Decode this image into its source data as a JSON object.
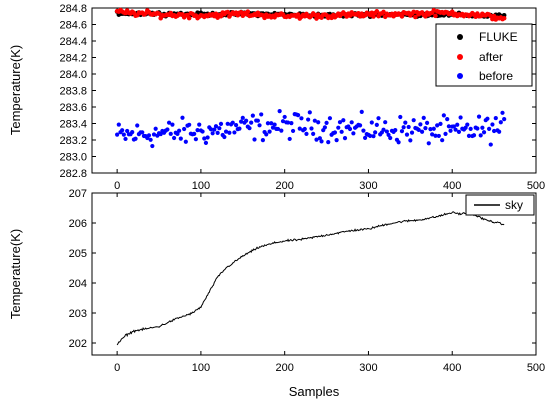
{
  "chart_data": [
    {
      "type": "scatter",
      "xlabel": "",
      "ylabel": "Temperature(K)",
      "xlim": [
        -30,
        500
      ],
      "ylim": [
        282.8,
        284.8
      ],
      "x_ticks": [
        "0",
        "100",
        "200",
        "300",
        "400",
        "500"
      ],
      "y_ticks": [
        "282.8",
        "283.0",
        "283.2",
        "283.4",
        "283.6",
        "283.8",
        "284.0",
        "284.2",
        "284.4",
        "284.6",
        "284.8"
      ],
      "legend_position": "top-right",
      "series": [
        {
          "name": "FLUKE",
          "color": "#000000",
          "n_points": 463,
          "mean": 284.72,
          "spread": 0.03,
          "x": [
            0,
            50,
            100,
            150,
            200,
            250,
            300,
            350,
            400,
            462
          ],
          "y": [
            284.74,
            284.73,
            284.72,
            284.73,
            284.72,
            284.71,
            284.72,
            284.72,
            284.72,
            284.7
          ]
        },
        {
          "name": "after",
          "color": "#ff0000",
          "n_points": 463,
          "mean": 284.72,
          "spread": 0.05,
          "x": [
            0,
            50,
            100,
            150,
            200,
            250,
            300,
            350,
            400,
            462
          ],
          "y": [
            284.75,
            284.72,
            284.71,
            284.73,
            284.7,
            284.71,
            284.72,
            284.73,
            284.74,
            284.68
          ]
        },
        {
          "name": "before",
          "color": "#0000ff",
          "n_points": 463,
          "mean": 283.32,
          "spread": 0.15,
          "x": [
            0,
            50,
            100,
            150,
            200,
            250,
            300,
            350,
            400,
            462
          ],
          "y": [
            283.25,
            283.28,
            283.3,
            283.35,
            283.38,
            283.36,
            283.32,
            283.33,
            283.3,
            283.35
          ]
        }
      ]
    },
    {
      "type": "line",
      "xlabel": "Samples",
      "ylabel": "Temperature(K)",
      "xlim": [
        -30,
        500
      ],
      "ylim": [
        201.6,
        207
      ],
      "x_ticks": [
        "0",
        "100",
        "200",
        "300",
        "400",
        "500"
      ],
      "y_ticks": [
        "202",
        "203",
        "204",
        "205",
        "206",
        "207"
      ],
      "legend_position": "top-right",
      "series": [
        {
          "name": "sky",
          "color": "#000000",
          "x": [
            0,
            10,
            20,
            30,
            50,
            70,
            90,
            100,
            110,
            120,
            130,
            150,
            170,
            190,
            200,
            220,
            240,
            260,
            280,
            300,
            320,
            340,
            360,
            380,
            400,
            410,
            420,
            440,
            462
          ],
          "y": [
            201.95,
            202.25,
            202.4,
            202.45,
            202.55,
            202.8,
            203.0,
            203.2,
            203.7,
            204.2,
            204.5,
            204.9,
            205.2,
            205.35,
            205.4,
            205.45,
            205.55,
            205.65,
            205.75,
            205.8,
            205.95,
            206.05,
            206.1,
            206.2,
            206.35,
            206.3,
            206.35,
            206.1,
            205.95
          ]
        }
      ]
    }
  ]
}
